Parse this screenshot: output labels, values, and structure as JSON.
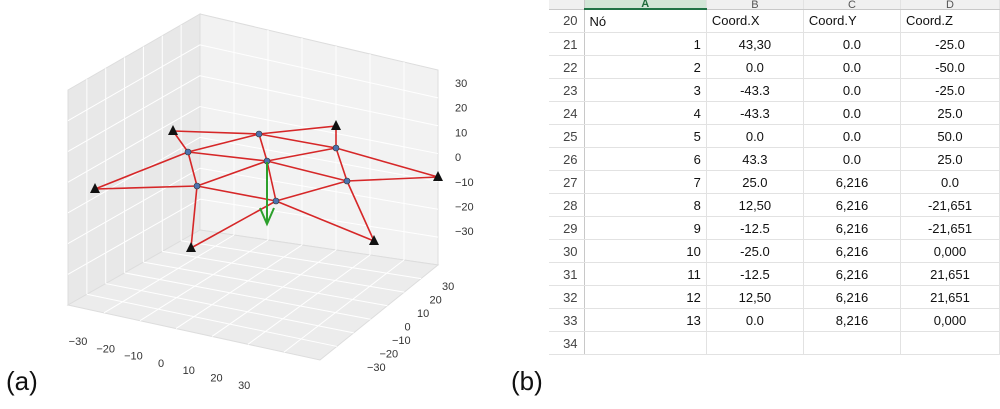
{
  "labels": {
    "a": "(a)",
    "b": "(b)"
  },
  "plot": {
    "z_ticks": [
      "30",
      "20",
      "10",
      "0",
      "−10",
      "−20",
      "−30"
    ],
    "x_ticks": [
      "−30",
      "−20",
      "−10",
      "0",
      "10",
      "20",
      "30"
    ],
    "y_ticks": [
      "30",
      "20",
      "10",
      "0",
      "−10",
      "−20",
      "−30"
    ],
    "member_color": "#d62728",
    "node_color": "#4c72b0",
    "support_color": "#111111",
    "load_color": "#2ca02c"
  },
  "sheet": {
    "columns": [
      "A",
      "B",
      "C",
      "D"
    ],
    "header_row": {
      "num": "20",
      "a": "Nó",
      "b": "Coord.X",
      "c": "Coord.Y",
      "d": "Coord.Z"
    },
    "rows": [
      {
        "num": "21",
        "a": "1",
        "b": "43,30",
        "c": "0.0",
        "d": "-25.0"
      },
      {
        "num": "22",
        "a": "2",
        "b": "0.0",
        "c": "0.0",
        "d": "-50.0"
      },
      {
        "num": "23",
        "a": "3",
        "b": "-43.3",
        "c": "0.0",
        "d": "-25.0"
      },
      {
        "num": "24",
        "a": "4",
        "b": "-43.3",
        "c": "0.0",
        "d": "25.0"
      },
      {
        "num": "25",
        "a": "5",
        "b": "0.0",
        "c": "0.0",
        "d": "50.0"
      },
      {
        "num": "26",
        "a": "6",
        "b": "43.3",
        "c": "0.0",
        "d": "25.0"
      },
      {
        "num": "27",
        "a": "7",
        "b": "25.0",
        "c": "6,216",
        "d": "0.0"
      },
      {
        "num": "28",
        "a": "8",
        "b": "12,50",
        "c": "6,216",
        "d": "-21,651"
      },
      {
        "num": "29",
        "a": "9",
        "b": "-12.5",
        "c": "6,216",
        "d": "-21,651"
      },
      {
        "num": "30",
        "a": "10",
        "b": "-25.0",
        "c": "6,216",
        "d": "0,000"
      },
      {
        "num": "31",
        "a": "11",
        "b": "-12.5",
        "c": "6,216",
        "d": "21,651"
      },
      {
        "num": "32",
        "a": "12",
        "b": "12,50",
        "c": "6,216",
        "d": "21,651"
      },
      {
        "num": "33",
        "a": "13",
        "b": "0.0",
        "c": "8,216",
        "d": "0,000"
      }
    ],
    "empty_row_num": "34"
  }
}
